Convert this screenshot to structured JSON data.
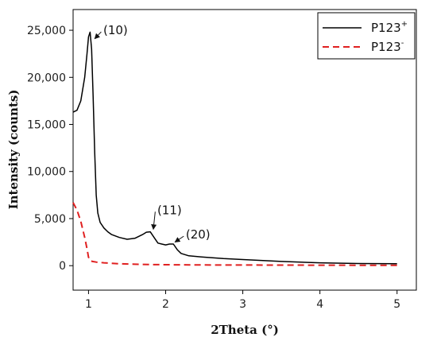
{
  "chart_data": {
    "type": "line",
    "xlabel": "2Theta (°)",
    "ylabel": "Intensity (counts)",
    "xlim": [
      0.8,
      5.25
    ],
    "ylim": [
      -2600,
      27200
    ],
    "xticks": [
      {
        "value": 1,
        "label": "1"
      },
      {
        "value": 2,
        "label": "2"
      },
      {
        "value": 3,
        "label": "3"
      },
      {
        "value": 4,
        "label": "4"
      },
      {
        "value": 5,
        "label": "5"
      }
    ],
    "yticks": [
      {
        "value": 0,
        "label": "0"
      },
      {
        "value": 5000,
        "label": "5,000"
      },
      {
        "value": 10000,
        "label": "10,000"
      },
      {
        "value": 15000,
        "label": "15,000"
      },
      {
        "value": 20000,
        "label": "20,000"
      },
      {
        "value": 25000,
        "label": "25,000"
      }
    ],
    "legend_position": "top-right",
    "series": [
      {
        "name": "P123",
        "superscript": "+",
        "color": "#000000",
        "dash": "solid",
        "x": [
          0.8,
          0.85,
          0.9,
          0.95,
          0.98,
          1.0,
          1.02,
          1.04,
          1.06,
          1.08,
          1.1,
          1.12,
          1.15,
          1.2,
          1.25,
          1.3,
          1.4,
          1.5,
          1.6,
          1.7,
          1.75,
          1.8,
          1.85,
          1.9,
          1.95,
          2.0,
          2.05,
          2.1,
          2.15,
          2.2,
          2.3,
          2.5,
          2.75,
          3.0,
          3.5,
          4.0,
          4.5,
          5.0
        ],
        "y": [
          16300,
          16500,
          17500,
          20000,
          22500,
          24300,
          24800,
          23000,
          18000,
          12000,
          7500,
          5600,
          4600,
          4000,
          3600,
          3300,
          3000,
          2800,
          2900,
          3300,
          3550,
          3600,
          3000,
          2400,
          2300,
          2200,
          2300,
          2300,
          1700,
          1300,
          1050,
          900,
          750,
          650,
          450,
          300,
          230,
          200
        ]
      },
      {
        "name": "P123",
        "superscript": "-",
        "color": "#e02020",
        "dash": "dashed",
        "x": [
          0.8,
          0.85,
          0.9,
          0.95,
          0.98,
          1.0,
          1.02,
          1.05,
          1.1,
          1.2,
          1.4,
          1.6,
          1.8,
          2.0,
          2.5,
          3.0,
          3.5,
          4.0,
          4.5,
          5.0
        ],
        "y": [
          6700,
          5900,
          4700,
          3000,
          1800,
          900,
          550,
          450,
          380,
          300,
          200,
          150,
          120,
          100,
          80,
          70,
          60,
          50,
          40,
          30
        ]
      }
    ],
    "annotations": [
      {
        "text": "(10)",
        "x": 1.35,
        "y": 25000,
        "arrow_to_x": 1.08,
        "arrow_to_y": 24100
      },
      {
        "text": "(11)",
        "x": 2.05,
        "y": 5900,
        "arrow_to_x": 1.84,
        "arrow_to_y": 3850
      },
      {
        "text": "(20)",
        "x": 2.42,
        "y": 3300,
        "arrow_to_x": 2.12,
        "arrow_to_y": 2500
      }
    ]
  }
}
